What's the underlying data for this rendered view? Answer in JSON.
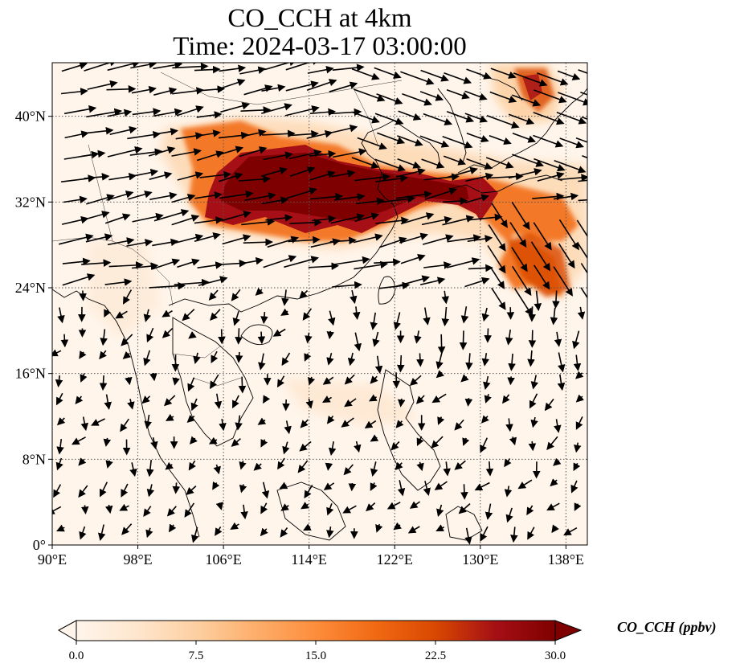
{
  "title_line1": "CO_CCH at 4km",
  "title_line2": "Time: 2024-03-17 03:00:00",
  "map": {
    "lon_range": [
      90,
      140
    ],
    "lat_range": [
      0,
      45
    ],
    "lat_ticks": [
      {
        "value": 0,
        "label": "0°"
      },
      {
        "value": 8,
        "label": "8°N"
      },
      {
        "value": 16,
        "label": "16°N"
      },
      {
        "value": 24,
        "label": "24°N"
      },
      {
        "value": 32,
        "label": "32°N"
      },
      {
        "value": 40,
        "label": "40°N"
      }
    ],
    "lon_ticks": [
      {
        "value": 90,
        "label": "90°E"
      },
      {
        "value": 98,
        "label": "98°E"
      },
      {
        "value": 106,
        "label": "106°E"
      },
      {
        "value": 114,
        "label": "114°E"
      },
      {
        "value": 122,
        "label": "122°E"
      },
      {
        "value": 130,
        "label": "130°E"
      },
      {
        "value": 138,
        "label": "138°E"
      }
    ],
    "gridlines": "dotted",
    "background_color": "#fff5eb",
    "plume_colors": [
      "#fdd9b5",
      "#fdae6b",
      "#f16913",
      "#d94801",
      "#a50f15",
      "#7f0000"
    ]
  },
  "colorbar": {
    "label": "CO_CCH (ppbv)",
    "ticks": [
      "0.0",
      "7.5",
      "15.0",
      "22.5",
      "30.0"
    ],
    "min": 0,
    "max": 30,
    "colors": [
      "#fff5eb",
      "#fee6ce",
      "#fdd0a2",
      "#fdae6b",
      "#fd8d3c",
      "#f16913",
      "#d94801",
      "#a50f15",
      "#7f0000"
    ],
    "extend": "both"
  }
}
